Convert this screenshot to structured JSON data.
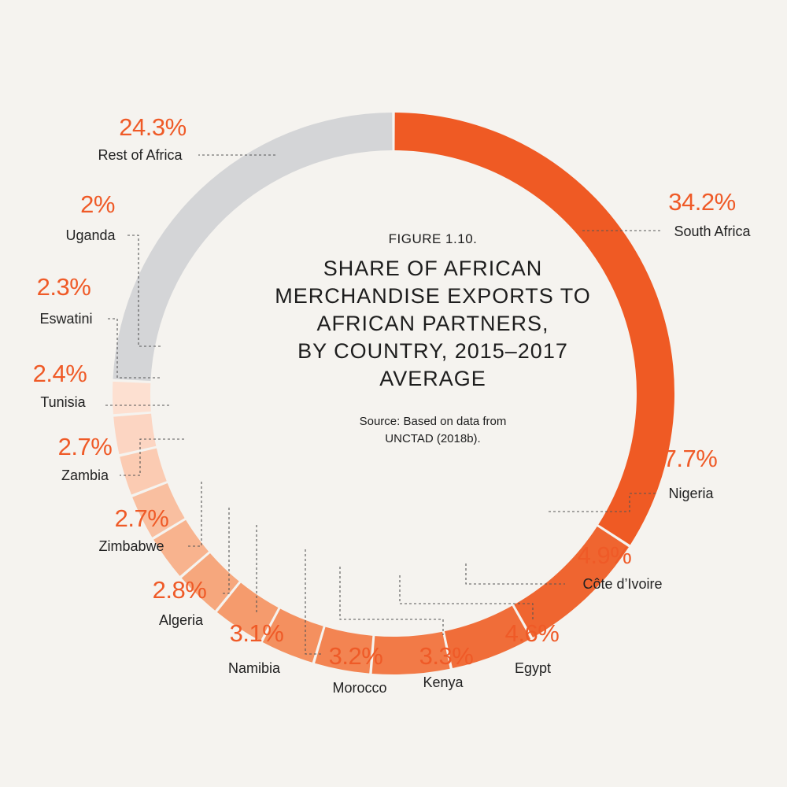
{
  "figure_label": "FIGURE 1.10.",
  "title_lines": [
    "SHARE OF AFRICAN",
    "MERCHANDISE EXPORTS TO",
    "AFRICAN PARTNERS,",
    "BY COUNTRY, 2015–2017",
    "AVERAGE"
  ],
  "source_lines": [
    "Source: Based on data from",
    "UNCTAD (2018b)."
  ],
  "chart_data": {
    "type": "pie",
    "unit": "%",
    "title": "SHARE OF AFRICAN MERCHANDISE EXPORTS TO AFRICAN PARTNERS, BY COUNTRY, 2015–2017 AVERAGE",
    "slices": [
      {
        "label": "South Africa",
        "value": 34.2,
        "display": "34.2%",
        "color": "#ef5a24"
      },
      {
        "label": "Nigeria",
        "value": 7.7,
        "display": "7.7%",
        "color": "#ef6530"
      },
      {
        "label": "Côte d’Ivoire",
        "value": 4.9,
        "display": "4.9%",
        "color": "#f06d39"
      },
      {
        "label": "Egypt",
        "value": 4.6,
        "display": "4.6%",
        "color": "#f27a47"
      },
      {
        "label": "Kenya",
        "value": 3.3,
        "display": "3.3%",
        "color": "#f38452"
      },
      {
        "label": "Morocco",
        "value": 3.2,
        "display": "3.2%",
        "color": "#f4905f"
      },
      {
        "label": "Namibia",
        "value": 3.1,
        "display": "3.1%",
        "color": "#f59b6d"
      },
      {
        "label": "Algeria",
        "value": 2.8,
        "display": "2.8%",
        "color": "#f6a77d"
      },
      {
        "label": "Zimbabwe",
        "value": 2.7,
        "display": "2.7%",
        "color": "#f8b38e"
      },
      {
        "label": "Zambia",
        "value": 2.7,
        "display": "2.7%",
        "color": "#f9bfa0"
      },
      {
        "label": "Tunisia",
        "value": 2.4,
        "display": "2.4%",
        "color": "#fbcbb2"
      },
      {
        "label": "Eswatini",
        "value": 2.3,
        "display": "2.3%",
        "color": "#fcd5c2"
      },
      {
        "label": "Uganda",
        "value": 2.0,
        "display": "2%",
        "color": "#fde0d1"
      },
      {
        "label": "Rest of Africa",
        "value": 24.3,
        "display": "24.3%",
        "color": "#d4d5d7"
      }
    ]
  }
}
